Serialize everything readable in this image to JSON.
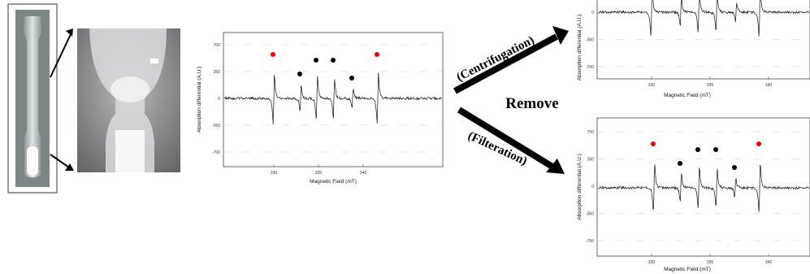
{
  "panels": [
    {
      "y_label": "Absorption differential (A.U.)",
      "x_label": "Magnetic Field (mT)",
      "y_ticks": [
        "700",
        "350",
        "0",
        "-350",
        "-700"
      ],
      "x_ticks": [
        "330",
        "335",
        "340"
      ]
    },
    {
      "y_label": "Absorption differential (A.U.)",
      "x_label": "Magnetic Field (mT)",
      "y_ticks": [
        "0",
        "-350",
        "-700"
      ],
      "x_ticks": [
        "330",
        "335",
        "340"
      ]
    },
    {
      "y_label": "Absorption differential (A.U.)",
      "x_label": "Magnetic Field (mT)",
      "y_ticks": [
        "700",
        "350",
        "0",
        "-350",
        "-700"
      ],
      "x_ticks": [
        "330",
        "335",
        "340"
      ]
    }
  ],
  "arrows": {
    "top_label": "(Centrifugation)",
    "bottom_label": "(Filteration)",
    "center_label": "Remove"
  }
}
